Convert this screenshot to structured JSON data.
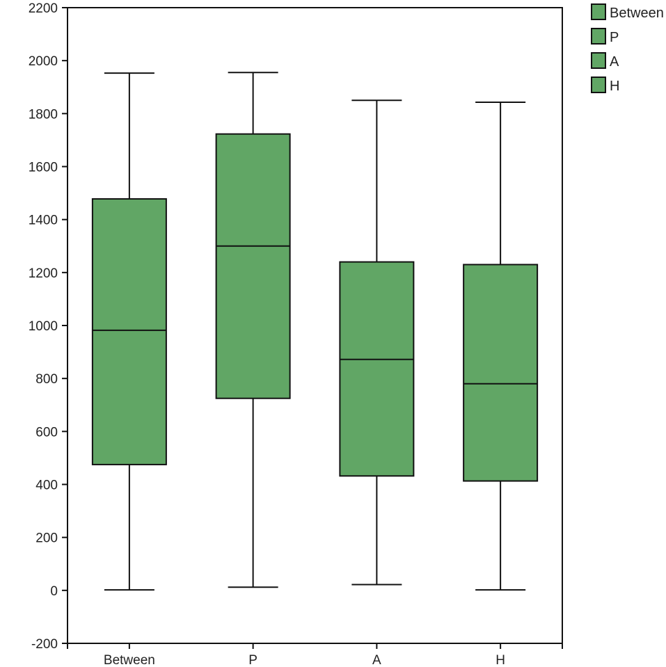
{
  "chart_data": {
    "type": "boxplot",
    "title": "",
    "xlabel": "",
    "ylabel": "",
    "ylim": [
      -200,
      2200
    ],
    "y_ticks": [
      -200,
      0,
      200,
      400,
      600,
      800,
      1000,
      1200,
      1400,
      1600,
      1800,
      2000,
      2200
    ],
    "y_tick_labels": [
      "-200",
      "0",
      "200",
      "400",
      "600",
      "800",
      "1000",
      "1200",
      "1400",
      "1600",
      "1800",
      "2000",
      "2200"
    ],
    "categories": [
      "Between",
      "P",
      "A",
      "H"
    ],
    "box_color": "#61a665",
    "stroke_color": "#111111",
    "legend_position": "top-right-outside",
    "legend": [
      "Between",
      "P",
      "A",
      "H"
    ],
    "series": [
      {
        "category": "Between",
        "min": 2,
        "q1": 475,
        "median": 982,
        "q3": 1478,
        "max": 1953
      },
      {
        "category": "P",
        "min": 12,
        "q1": 725,
        "median": 1300,
        "q3": 1723,
        "max": 1955
      },
      {
        "category": "A",
        "min": 22,
        "q1": 432,
        "median": 872,
        "q3": 1240,
        "max": 1850
      },
      {
        "category": "H",
        "min": 2,
        "q1": 413,
        "median": 780,
        "q3": 1230,
        "max": 1843
      }
    ]
  }
}
